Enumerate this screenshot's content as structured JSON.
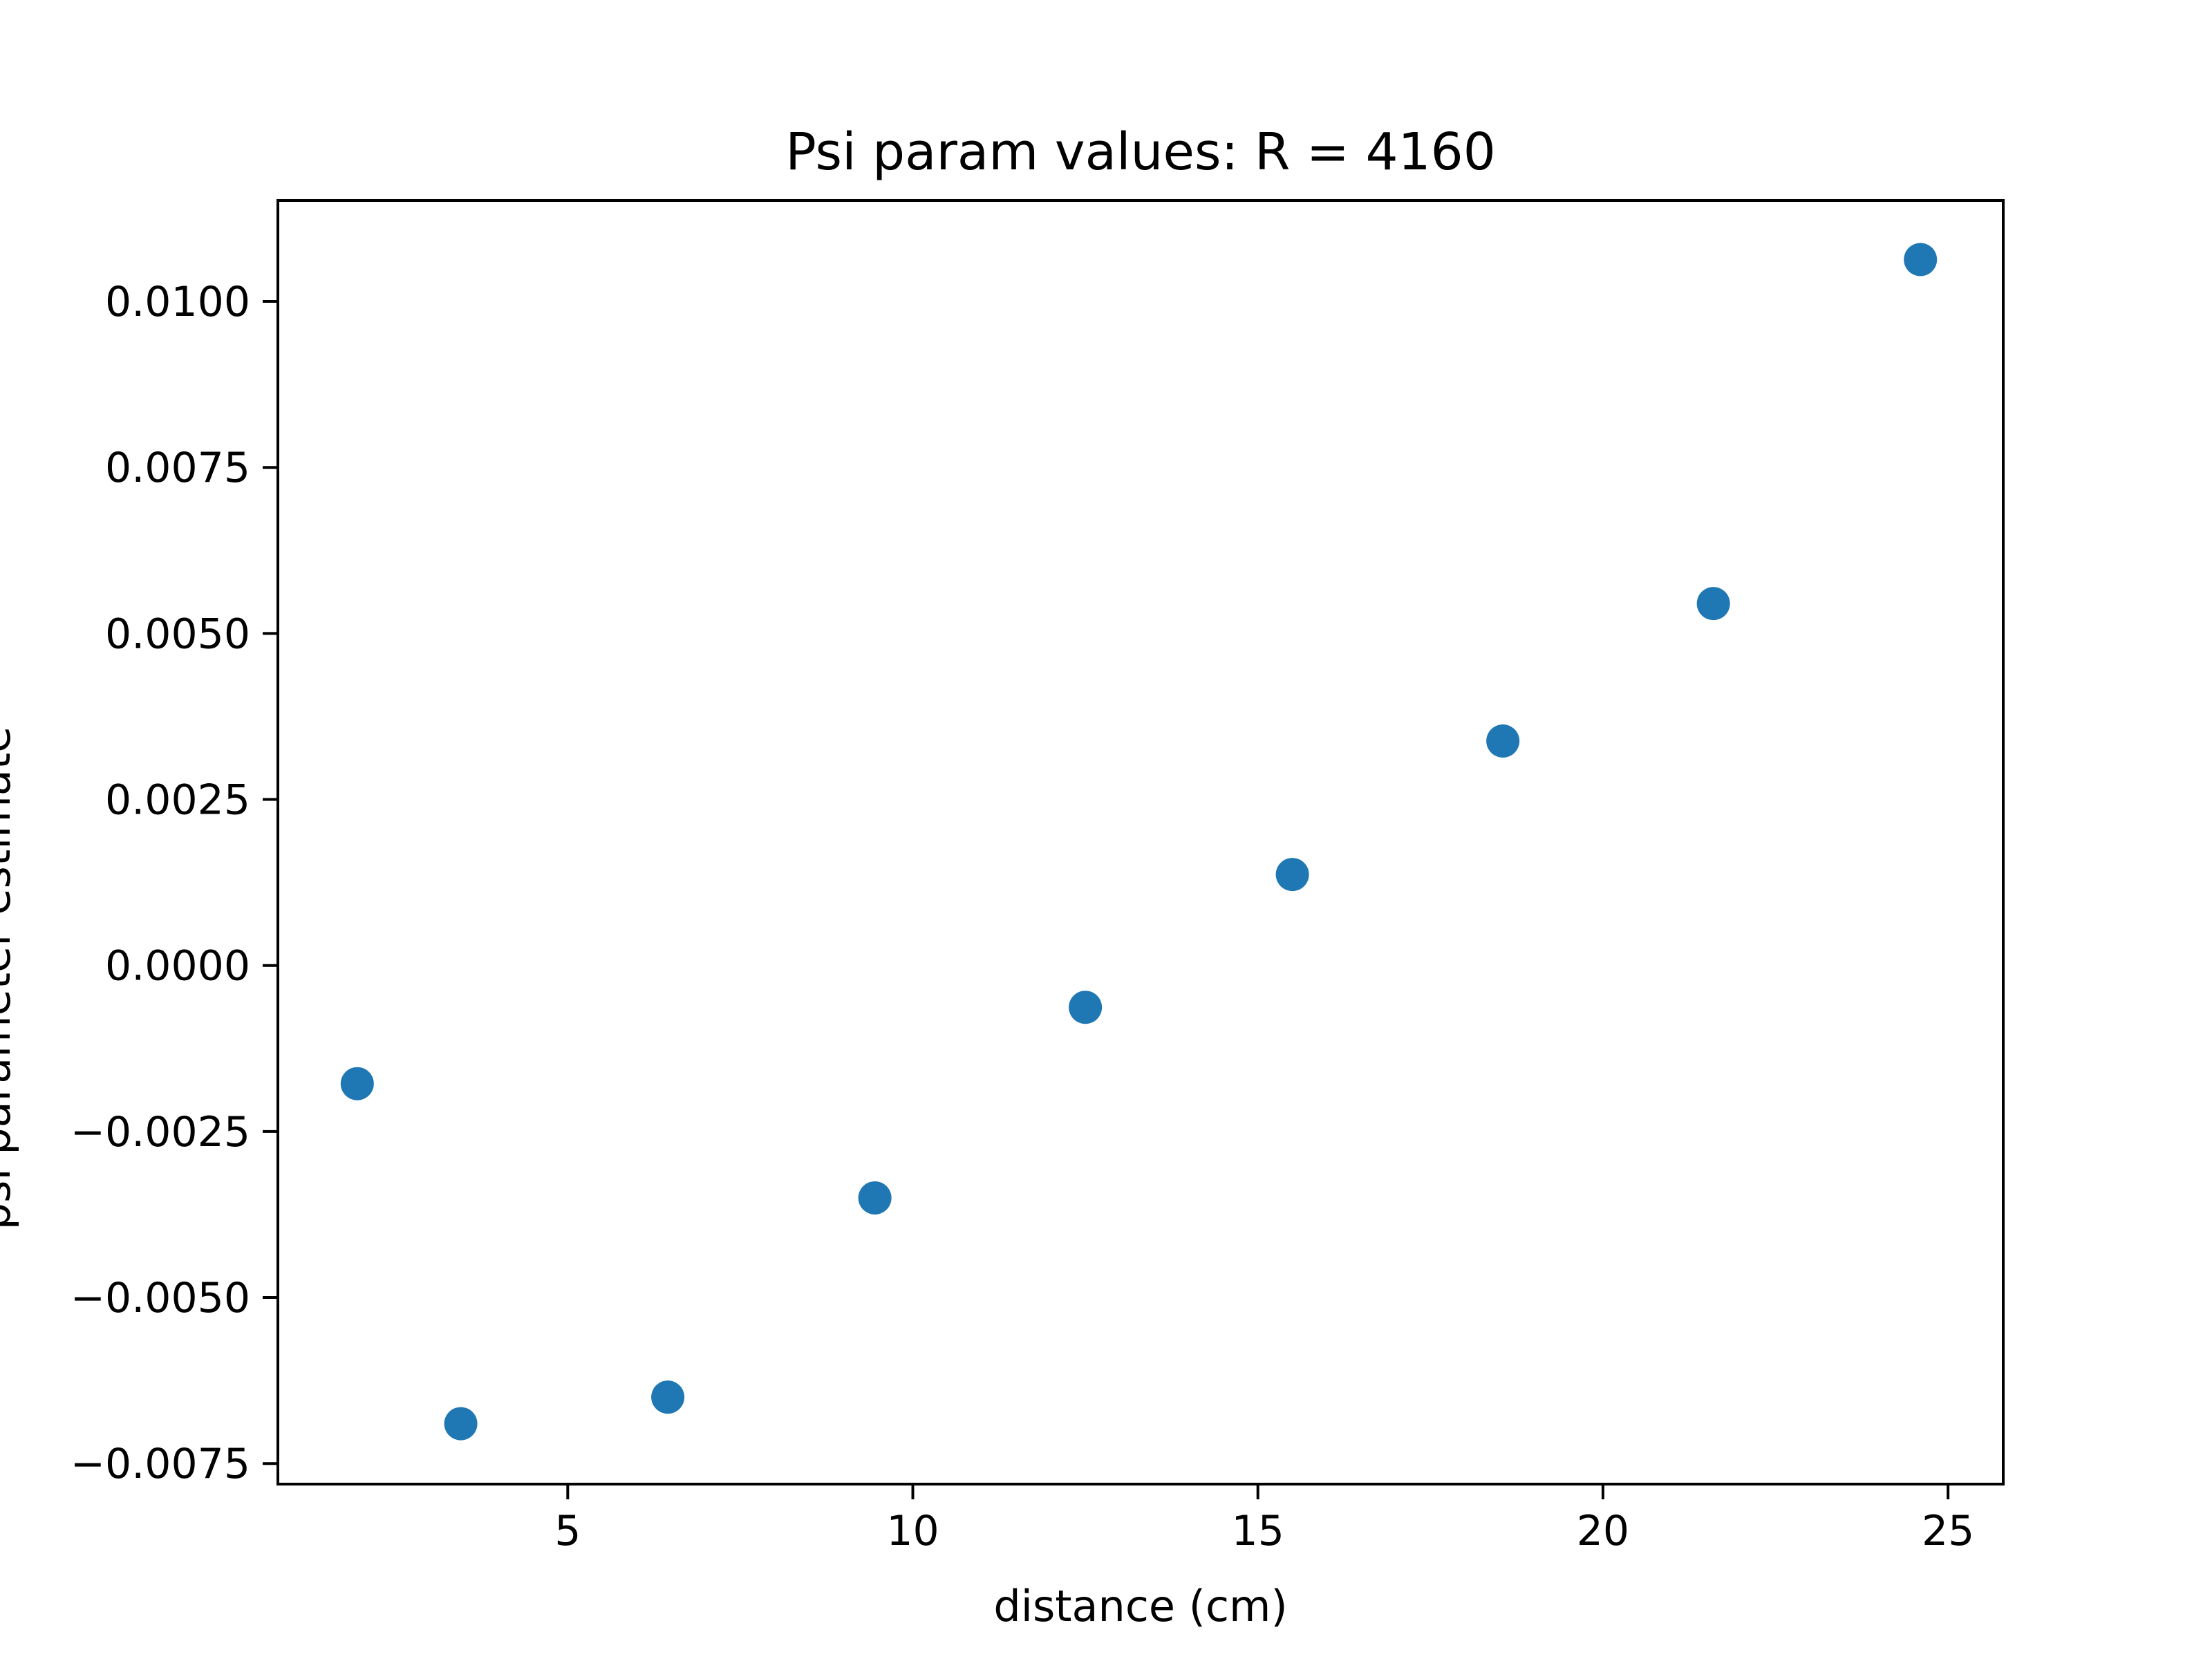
{
  "chart_data": {
    "type": "scatter",
    "title": "Psi param values: R = 4160",
    "xlabel": "distance (cm)",
    "ylabel": "psi parameter estimate",
    "xlim": [
      0.8,
      25.8
    ],
    "ylim": [
      -0.00781,
      0.01152
    ],
    "x_ticks": [
      5,
      10,
      15,
      20,
      25
    ],
    "x_tick_labels": [
      "5",
      "10",
      "15",
      "20",
      "25"
    ],
    "y_ticks": [
      -0.0075,
      -0.005,
      -0.0025,
      0.0,
      0.0025,
      0.005,
      0.0075,
      0.01
    ],
    "y_tick_labels": [
      "−0.0075",
      "−0.0050",
      "−0.0025",
      "0.0000",
      "0.0025",
      "0.0050",
      "0.0075",
      "0.0100"
    ],
    "grid": false,
    "marker_color": "#1f77b4",
    "series": [
      {
        "x": [
          1.95,
          3.45,
          6.45,
          9.45,
          12.5,
          15.5,
          18.55,
          21.6,
          24.6
        ],
        "y": [
          -0.00178,
          -0.0069,
          -0.0065,
          -0.0035,
          -0.00063,
          0.00137,
          0.00338,
          0.00545,
          0.01063
        ]
      }
    ]
  }
}
